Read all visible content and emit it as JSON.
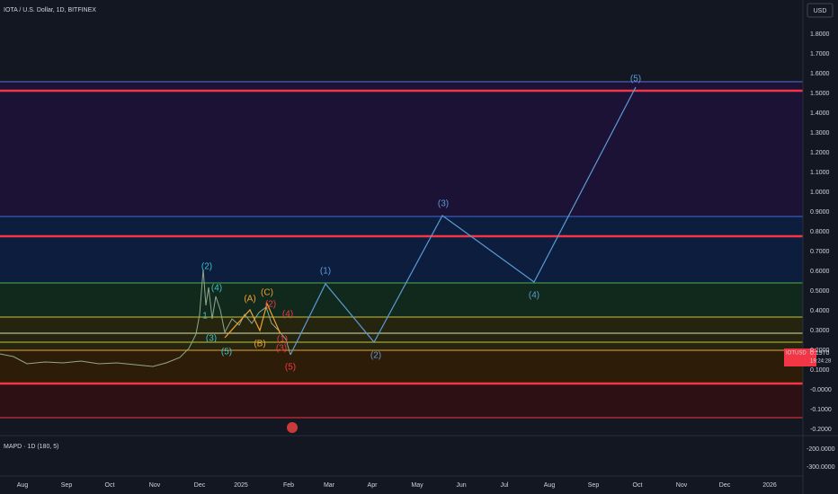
{
  "header": {
    "title": "IOTA / U.S. Dollar, 1D, BITFINEX",
    "currency": "USD"
  },
  "price_axis": {
    "ticks": [
      "1.8000",
      "1.7000",
      "1.6000",
      "1.5000",
      "1.4000",
      "1.3000",
      "1.2000",
      "1.1000",
      "1.0000",
      "0.9000",
      "0.8000",
      "0.7000",
      "0.6000",
      "0.5000",
      "0.4000",
      "0.3000",
      "0.2000",
      "0.1000",
      "-0.0000",
      "-0.1000",
      "-0.2000"
    ]
  },
  "price_tag": {
    "symbol": "IOTUSD",
    "price": "0.1970",
    "countdown": "19:24:28"
  },
  "indicator": {
    "label": "MAPD · 1D (180, 5)",
    "ticks": [
      "-200.0000",
      "-300.0000"
    ]
  },
  "time_axis": {
    "labels": [
      "Aug",
      "Sep",
      "Oct",
      "Nov",
      "Dec",
      "2025",
      "Feb",
      "Mar",
      "Apr",
      "May",
      "Jun",
      "Jul",
      "Aug",
      "Sep",
      "Oct",
      "Nov",
      "Dec",
      "2026"
    ]
  },
  "waves": {
    "projection": [
      "(1)",
      "(2)",
      "(3)",
      "(4)",
      "(5)"
    ],
    "red": [
      "(1)",
      "(2)",
      "(3)",
      "(4)",
      "(5)"
    ],
    "orange": [
      "(A)",
      "(B)",
      "(C)"
    ],
    "cyan": [
      "1",
      "(2)",
      "(3)",
      "(4)",
      "(5)"
    ]
  }
}
